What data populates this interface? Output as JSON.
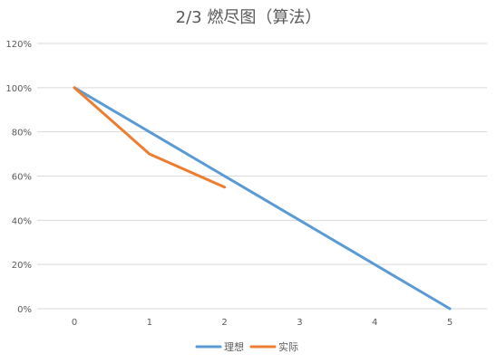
{
  "chart_data": {
    "type": "line",
    "title": "2/3  燃尽图（算法）",
    "xlabel": "",
    "ylabel": "",
    "x": [
      0,
      1,
      2,
      3,
      4,
      5
    ],
    "x_tick_labels": [
      "0",
      "1",
      "2",
      "3",
      "4",
      "5"
    ],
    "ylim": [
      0,
      1.2
    ],
    "y_ticks": [
      0,
      0.2,
      0.4,
      0.6,
      0.8,
      1.0,
      1.2
    ],
    "y_tick_labels": [
      "0%",
      "20%",
      "40%",
      "60%",
      "80%",
      "100%",
      "120%"
    ],
    "grid": true,
    "legend_position": "bottom",
    "series": [
      {
        "name": "理想",
        "color": "#5B9BD5",
        "x": [
          0,
          1,
          2,
          3,
          4,
          5
        ],
        "values": [
          1.0,
          0.8,
          0.6,
          0.4,
          0.2,
          0.0
        ]
      },
      {
        "name": "实际",
        "color": "#ED7D31",
        "x": [
          0,
          1,
          2
        ],
        "values": [
          1.0,
          0.7,
          0.55
        ]
      }
    ]
  },
  "colors": {
    "grid": "#D9D9D9",
    "text": "#595959"
  }
}
